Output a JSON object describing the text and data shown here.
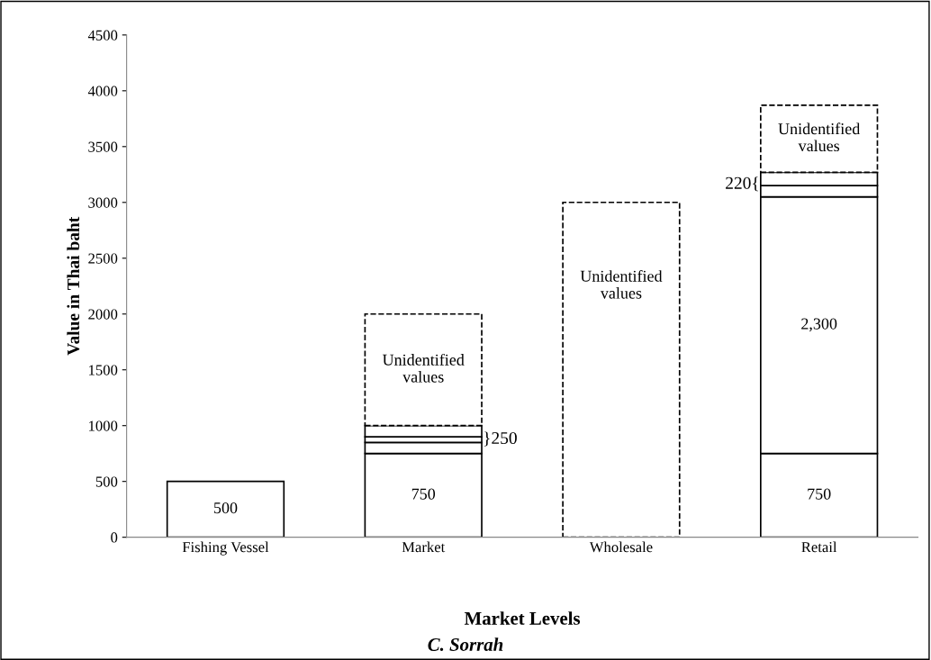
{
  "chart_data": {
    "type": "bar",
    "stacked": true,
    "xlabel": "Market Levels",
    "ylabel": "Value in Thai baht",
    "categories": [
      "Fishing Vessel",
      "Market",
      "Wholesale",
      "Retail"
    ],
    "series": [
      {
        "color": "#ffffff",
        "values": [
          500,
          750,
          null,
          750
        ],
        "value_labels": [
          "500",
          "750",
          null,
          "750"
        ]
      },
      {
        "color": "#ffffff",
        "values": [
          null,
          100,
          null,
          2300
        ],
        "value_labels": [
          null,
          null,
          null,
          "2,300"
        ]
      },
      {
        "color": "#ffffff",
        "values": [
          null,
          50,
          null,
          100
        ]
      },
      {
        "color": "#ffffff",
        "values": [
          null,
          100,
          null,
          120
        ]
      },
      {
        "color": "#ffffff",
        "values": [
          null,
          1000,
          3000,
          600
        ],
        "line_style": "dashed",
        "value_labels": [
          null,
          "Unidentified\nvalues",
          "Unidentified\nvalues",
          "Unidentified\nvalues"
        ]
      }
    ],
    "ylim": [
      0,
      4500
    ],
    "yticks": [
      0,
      500,
      1000,
      1500,
      2000,
      2500,
      3000,
      3500,
      4000,
      4500
    ],
    "grid": false,
    "annotations": [
      "}250",
      "220{",
      "C. Sorrah"
    ]
  }
}
